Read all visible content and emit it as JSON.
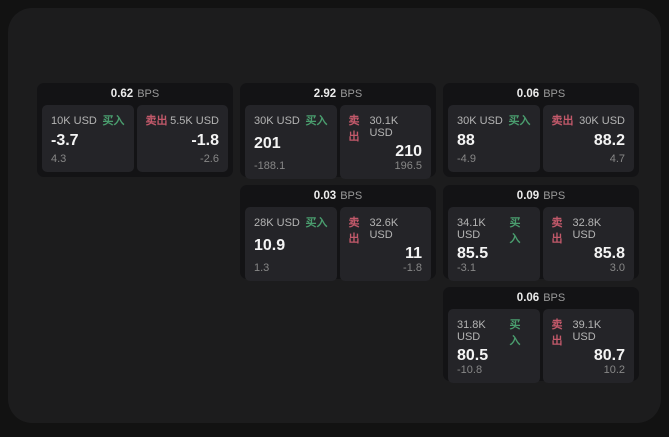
{
  "theme": {
    "outer_bg": "#121212",
    "window_bg": "#1c1c1d",
    "card_bg": "#131315",
    "panel_bg": "#242428",
    "buy_color": "#4a9d6e",
    "sell_color": "#c2596a",
    "value_color": "#f4f4f4",
    "muted_color": "#9a9a9a"
  },
  "labels": {
    "bps_unit": "BPS",
    "buy": "买入",
    "sell": "卖出"
  },
  "cards": [
    {
      "row": 1,
      "col": 1,
      "bps": "0.62",
      "buy": {
        "amount": "10K USD",
        "value": "-3.7",
        "sub": "4.3"
      },
      "sell": {
        "amount": "5.5K USD",
        "value": "-1.8",
        "sub": "-2.6"
      }
    },
    {
      "row": 1,
      "col": 2,
      "bps": "2.92",
      "buy": {
        "amount": "30K USD",
        "value": "201",
        "sub": "-188.1"
      },
      "sell": {
        "amount": "30.1K USD",
        "value": "210",
        "sub": "196.5"
      }
    },
    {
      "row": 1,
      "col": 3,
      "bps": "0.06",
      "buy": {
        "amount": "30K USD",
        "value": "88",
        "sub": "-4.9"
      },
      "sell": {
        "amount": "30K USD",
        "value": "88.2",
        "sub": "4.7"
      }
    },
    {
      "row": 2,
      "col": 2,
      "bps": "0.03",
      "buy": {
        "amount": "28K USD",
        "value": "10.9",
        "sub": "1.3"
      },
      "sell": {
        "amount": "32.6K USD",
        "value": "11",
        "sub": "-1.8"
      }
    },
    {
      "row": 2,
      "col": 3,
      "bps": "0.09",
      "buy": {
        "amount": "34.1K USD",
        "value": "85.5",
        "sub": "-3.1"
      },
      "sell": {
        "amount": "32.8K USD",
        "value": "85.8",
        "sub": "3.0"
      }
    },
    {
      "row": 3,
      "col": 3,
      "bps": "0.06",
      "buy": {
        "amount": "31.8K USD",
        "value": "80.5",
        "sub": "-10.8"
      },
      "sell": {
        "amount": "39.1K USD",
        "value": "80.7",
        "sub": "10.2"
      }
    }
  ]
}
